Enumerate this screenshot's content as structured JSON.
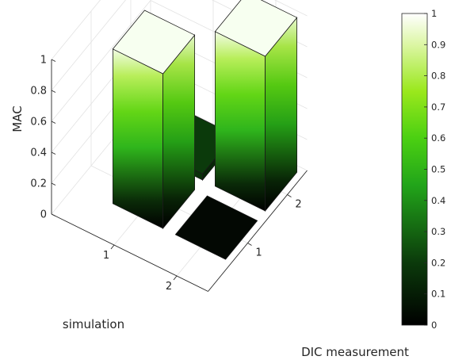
{
  "chart_data": {
    "type": "bar3",
    "title": "",
    "xlabel": "DIC measurement",
    "ylabel": "simulation",
    "zlabel": "MAC",
    "x_categories": [
      "1",
      "2"
    ],
    "y_categories": [
      "1",
      "2"
    ],
    "values": [
      [
        1.0,
        0.04
      ],
      [
        0.0,
        1.0
      ]
    ],
    "zlim": [
      0,
      1
    ],
    "z_ticks": [
      "0",
      "0.2",
      "0.4",
      "0.6",
      "0.8",
      "1"
    ],
    "grid": true,
    "colormap": "black-green-white",
    "colorbar": {
      "ticks": [
        "0",
        "0.1",
        "0.2",
        "0.3",
        "0.4",
        "0.5",
        "0.6",
        "0.7",
        "0.8",
        "0.9",
        "1"
      ],
      "placement": "right"
    }
  }
}
